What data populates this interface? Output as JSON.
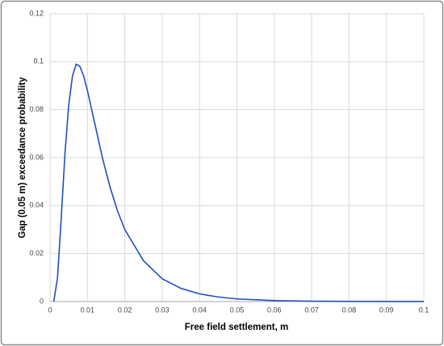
{
  "chart_data": {
    "type": "line",
    "xlabel": "Free field settlement, m",
    "ylabel": "Gap (0.05 m) exceedance probability",
    "x": [
      0.001,
      0.002,
      0.003,
      0.004,
      0.005,
      0.006,
      0.007,
      0.008,
      0.009,
      0.01,
      0.012,
      0.014,
      0.016,
      0.018,
      0.02,
      0.025,
      0.03,
      0.035,
      0.04,
      0.045,
      0.05,
      0.06,
      0.07,
      0.08,
      0.09,
      0.1
    ],
    "series": [
      {
        "color": "#1f4fbf",
        "values": [
          0,
          0.01,
          0.035,
          0.062,
          0.082,
          0.094,
          0.099,
          0.098,
          0.094,
          0.088,
          0.074,
          0.06,
          0.048,
          0.038,
          0.03,
          0.017,
          0.0095,
          0.0055,
          0.0032,
          0.0019,
          0.0011,
          0.0004,
          0.00015,
          5e-05,
          2e-05,
          1e-05
        ]
      }
    ],
    "xlim": [
      0,
      0.1
    ],
    "xticks": [
      0,
      0.01,
      0.02,
      0.03,
      0.04,
      0.05,
      0.06,
      0.07,
      0.08,
      0.09,
      0.1
    ],
    "ylim": [
      0,
      0.12
    ],
    "yticks": [
      0,
      0.02,
      0.04,
      0.06,
      0.08,
      0.1,
      0.12
    ],
    "grid": true
  }
}
